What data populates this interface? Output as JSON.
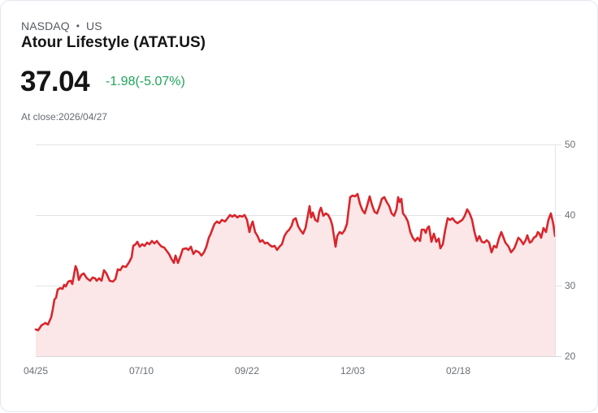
{
  "header": {
    "exchange": "NASDAQ",
    "separator": "•",
    "market": "US",
    "title": "Atour Lifestyle (ATAT.US)"
  },
  "quote": {
    "price": "37.04",
    "change": "-1.98(-5.07%)",
    "as_of": "At close:2026/04/27"
  },
  "colors": {
    "line": "#d9262c",
    "fill": "#fbe7e8",
    "change_text": "#1fa55a",
    "grid": "#e3e3e6"
  },
  "chart_data": {
    "type": "area",
    "title": "Atour Lifestyle (ATAT.US)",
    "xlabel": "",
    "ylabel": "",
    "ylim": [
      20,
      50
    ],
    "yticks": [
      "50",
      "40",
      "30",
      "20"
    ],
    "xticks": [
      "04/25",
      "07/10",
      "09/22",
      "12/03",
      "02/18"
    ],
    "grid": true,
    "legend": "none",
    "series": [
      {
        "name": "ATAT.US",
        "x": [
          43,
          46,
          50,
          55,
          58,
          62,
          64,
          66,
          68,
          70,
          73,
          76,
          78,
          80,
          83,
          86,
          88,
          90,
          92,
          94,
          96,
          99,
          102,
          106,
          110,
          113,
          116,
          118,
          121,
          124,
          127,
          130,
          134,
          138,
          141,
          144,
          147,
          150,
          154,
          158,
          161,
          163,
          166,
          168,
          171,
          174,
          177,
          180,
          183,
          186,
          189,
          192,
          195,
          198,
          201,
          204,
          207,
          210,
          213,
          215,
          218,
          221,
          224,
          228,
          231,
          234,
          237,
          240,
          244,
          247,
          250,
          253,
          256,
          258,
          261,
          263,
          266,
          269,
          272,
          276,
          279,
          282,
          285,
          288,
          291,
          294,
          297,
          300,
          303,
          306,
          308,
          310,
          313,
          316,
          319,
          322,
          325,
          328,
          331,
          334,
          337,
          340,
          343,
          346,
          349,
          352,
          355,
          358,
          360,
          363,
          366,
          369,
          372,
          375,
          378,
          380,
          382,
          384,
          387,
          390,
          392,
          394,
          397,
          400,
          403,
          406,
          408,
          410,
          412,
          414,
          417,
          420,
          423,
          426,
          428,
          430,
          433,
          436,
          439,
          442,
          445,
          448,
          451,
          454,
          457,
          460,
          463,
          466,
          469,
          472,
          475,
          478,
          481,
          484,
          487,
          489,
          491,
          493,
          495,
          498,
          501,
          504,
          507,
          510,
          513,
          516,
          518,
          521,
          523,
          525,
          527,
          530,
          533,
          536,
          539,
          541,
          544,
          547,
          550,
          553,
          556,
          559,
          562,
          565,
          568,
          571,
          574,
          577,
          580,
          583,
          586,
          589,
          592,
          595,
          598,
          601,
          604,
          607,
          610,
          613,
          616,
          618,
          621,
          625,
          628,
          632,
          634,
          637,
          640,
          643,
          646,
          648,
          651,
          653,
          656,
          659,
          661,
          663,
          665,
          668,
          671,
          674,
          677,
          680,
          682
        ],
        "values": [
          23.79,
          23.68,
          24.37,
          24.71,
          24.48,
          25.52,
          26.67,
          28.05,
          28.28,
          29.43,
          29.66,
          29.54,
          30.11,
          29.89,
          30.57,
          30.69,
          30.23,
          31.49,
          32.76,
          32.18,
          30.8,
          31.49,
          31.72,
          31.03,
          30.69,
          31.15,
          31.03,
          30.69,
          31.03,
          30.69,
          32.18,
          31.72,
          30.69,
          30.57,
          30.92,
          32.3,
          32.18,
          32.76,
          32.64,
          33.33,
          34.02,
          35.63,
          35.86,
          36.21,
          35.52,
          35.86,
          35.63,
          36.09,
          35.86,
          36.32,
          35.98,
          36.32,
          35.86,
          35.52,
          35.4,
          34.94,
          34.48,
          33.79,
          33.22,
          34.25,
          33.22,
          34.14,
          35.17,
          35.29,
          35.06,
          35.52,
          34.48,
          34.94,
          34.71,
          34.25,
          34.71,
          35.52,
          36.78,
          37.24,
          38.16,
          38.74,
          39.08,
          38.85,
          39.31,
          39.08,
          39.54,
          40.0,
          39.77,
          40.0,
          39.66,
          39.89,
          39.77,
          40.0,
          39.31,
          37.59,
          38.51,
          39.08,
          37.59,
          37.01,
          36.21,
          36.44,
          35.98,
          36.09,
          35.75,
          35.52,
          35.63,
          35.06,
          35.52,
          35.86,
          37.01,
          37.59,
          37.93,
          38.51,
          39.31,
          39.54,
          38.39,
          37.82,
          37.36,
          38.16,
          40.0,
          41.26,
          39.66,
          40.34,
          39.31,
          39.08,
          40.46,
          41.03,
          39.89,
          40.23,
          40.0,
          39.31,
          38.51,
          37.01,
          35.52,
          37.01,
          37.59,
          37.36,
          37.82,
          38.74,
          40.69,
          42.53,
          42.76,
          42.64,
          42.99,
          41.61,
          40.69,
          40.23,
          41.38,
          42.64,
          41.38,
          40.46,
          40.23,
          41.15,
          42.3,
          42.53,
          41.84,
          41.26,
          40.23,
          39.89,
          40.8,
          42.53,
          41.84,
          42.3,
          40.23,
          39.77,
          39.08,
          37.59,
          36.78,
          36.32,
          36.78,
          36.32,
          37.93,
          37.93,
          37.47,
          38.16,
          38.39,
          36.21,
          37.36,
          36.21,
          36.67,
          35.29,
          35.86,
          37.93,
          39.54,
          39.31,
          39.54,
          39.08,
          38.85,
          39.08,
          39.31,
          39.89,
          40.8,
          40.23,
          39.31,
          37.59,
          36.32,
          37.01,
          36.21,
          36.09,
          36.44,
          36.09,
          34.71,
          35.63,
          35.4,
          36.67,
          37.59,
          37.01,
          36.09,
          35.52,
          34.71,
          35.29,
          35.86,
          36.78,
          36.44,
          35.86,
          36.44,
          37.13,
          36.09,
          36.21,
          36.78,
          37.01,
          37.59,
          37.36,
          36.78,
          38.16,
          37.59,
          39.31,
          40.23,
          38.74,
          37.04
        ]
      }
    ]
  }
}
